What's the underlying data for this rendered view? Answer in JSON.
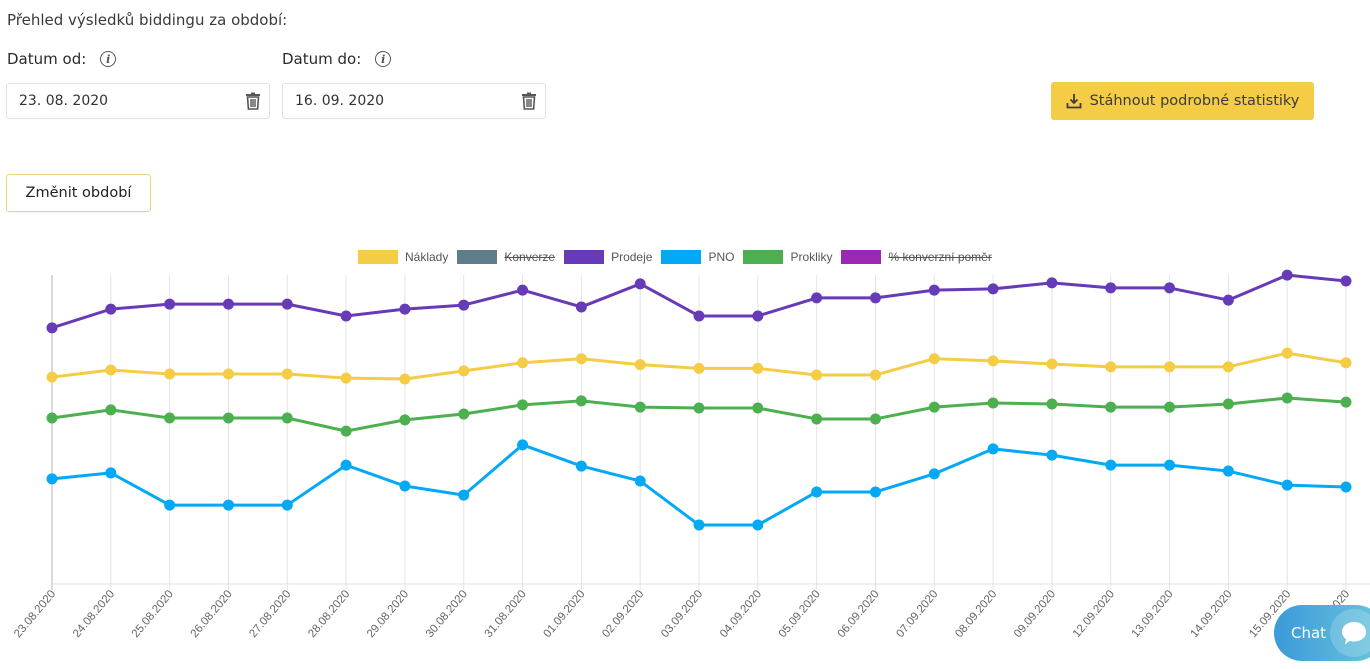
{
  "header": {
    "title": "Přehled výsledků biddingu za období:"
  },
  "date_from": {
    "label": "Datum od:",
    "value": "23. 08. 2020"
  },
  "date_to": {
    "label": "Datum do:",
    "value": "16. 09. 2020"
  },
  "actions": {
    "download_label": "Stáhnout podrobné statistiky",
    "change_period_label": "Změnit období"
  },
  "chat": {
    "label": "Chat"
  },
  "chart_data": {
    "type": "line",
    "title": "",
    "xlabel": "",
    "ylabel": "",
    "ylim": [
      0,
      100
    ],
    "y_axis_labels_visible": false,
    "grid": "vertical",
    "legend_position": "top",
    "x": [
      "23.08.2020",
      "24.08.2020",
      "25.08.2020",
      "26.08.2020",
      "27.08.2020",
      "28.08.2020",
      "29.08.2020",
      "30.08.2020",
      "31.08.2020",
      "01.09.2020",
      "02.09.2020",
      "03.09.2020",
      "04.09.2020",
      "05.09.2020",
      "06.09.2020",
      "07.09.2020",
      "08.09.2020",
      "09.09.2020",
      "12.09.2020",
      "13.09.2020",
      "14.09.2020",
      "15.09.2020",
      "16.09.2020"
    ],
    "series": [
      {
        "name": "Náklady",
        "color": "#f4cc45",
        "hidden": false,
        "values": [
          66.3,
          68.6,
          67.3,
          67.3,
          67.3,
          66.0,
          65.7,
          68.3,
          70.9,
          72.2,
          70.3,
          69.1,
          69.1,
          67.0,
          67.0,
          72.2,
          71.5,
          70.5,
          69.6,
          69.6,
          69.6,
          74.0,
          70.9
        ]
      },
      {
        "name": "Konverze",
        "color": "#607d8b",
        "hidden": true,
        "values": []
      },
      {
        "name": "Prodeje",
        "color": "#673ab7",
        "hidden": false,
        "values": [
          82.1,
          88.1,
          89.7,
          89.7,
          89.7,
          85.9,
          88.1,
          89.4,
          94.2,
          88.8,
          96.2,
          85.9,
          85.9,
          91.7,
          91.7,
          94.2,
          94.6,
          96.5,
          94.9,
          94.9,
          91.0,
          99.0,
          97.1
        ]
      },
      {
        "name": "PNO",
        "color": "#03a9f4",
        "hidden": false,
        "values": [
          33.7,
          35.6,
          25.3,
          25.3,
          25.3,
          38.1,
          31.4,
          28.5,
          44.6,
          37.8,
          33.0,
          18.9,
          18.9,
          29.5,
          29.5,
          35.3,
          43.3,
          41.3,
          38.1,
          38.1,
          36.2,
          31.7,
          31.1
        ]
      },
      {
        "name": "Prokliky",
        "color": "#4caf50",
        "hidden": false,
        "values": [
          53.2,
          55.8,
          53.2,
          53.2,
          53.2,
          49.0,
          52.6,
          54.5,
          57.4,
          58.7,
          56.7,
          56.4,
          56.4,
          52.9,
          52.9,
          56.7,
          58.0,
          57.7,
          56.7,
          56.7,
          57.7,
          59.6,
          58.3
        ]
      },
      {
        "name": "% konverzní poměr",
        "color": "#9c27b0",
        "hidden": true,
        "values": []
      }
    ]
  }
}
